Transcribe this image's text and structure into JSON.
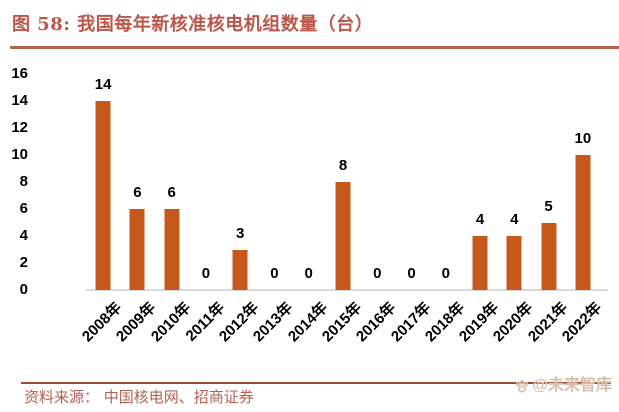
{
  "header": {
    "title": "图 58:  我国每年新核准核电机组数量（台）"
  },
  "chart_data": {
    "type": "bar",
    "title": "图 58: 我国每年新核准核电机组数量（台）",
    "categories": [
      "2008年",
      "2009年",
      "2010年",
      "2011年",
      "2012年",
      "2013年",
      "2014年",
      "2015年",
      "2016年",
      "2017年",
      "2018年",
      "2019年",
      "2020年",
      "2021年",
      "2022年"
    ],
    "values": [
      14,
      6,
      6,
      0,
      3,
      0,
      0,
      8,
      0,
      0,
      0,
      4,
      4,
      5,
      10
    ],
    "xlabel": "",
    "ylabel": "",
    "ylim": [
      0,
      16
    ],
    "yticks": [
      0,
      2,
      4,
      6,
      8,
      10,
      12,
      14,
      16
    ],
    "grid": false,
    "legend": null,
    "bar_color": "#C5591B",
    "value_label_color": "#000000",
    "baseline_color": "#D9D9D9"
  },
  "footer": {
    "source": "资料来源：  中国核电网、招商证券",
    "watermark": "@未来智库",
    "watermark_icon": "paw-icon"
  },
  "colors": {
    "title_text": "#B9574A",
    "title_rule": "#AE6450",
    "footer_rule": "#9E4936",
    "source_text": "#B46052",
    "watermark": "#D9BFA9",
    "background": "#FFFFFF"
  }
}
